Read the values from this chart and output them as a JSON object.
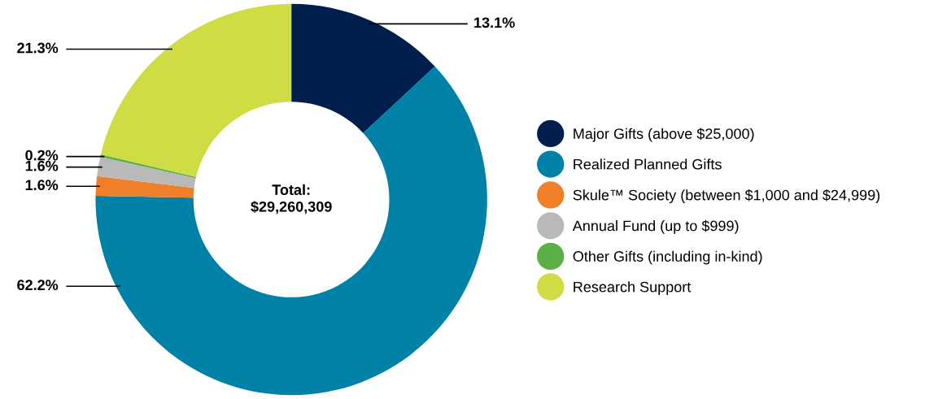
{
  "chart_data": {
    "type": "donut",
    "categories": [
      "Major Gifts (above $25,000)",
      "Realized Planned Gifts",
      "Skule™ Society (between $1,000 and $24,999)",
      "Annual Fund (up to $999)",
      "Other Gifts (including in-kind)",
      "Research Support"
    ],
    "values": [
      13.1,
      62.2,
      1.6,
      1.6,
      0.2,
      21.3
    ],
    "colors": [
      "#001f4d",
      "#0081a8",
      "#f07f2a",
      "#b9b9b9",
      "#5ab046",
      "#d0dc44"
    ],
    "value_labels": [
      "13.1%",
      "62.2%",
      "1.6%",
      "1.6%",
      "0.2%",
      "21.3%"
    ],
    "annotations": [
      "Total:\n$29,260,309"
    ],
    "legend": "right",
    "marker": "circle"
  }
}
